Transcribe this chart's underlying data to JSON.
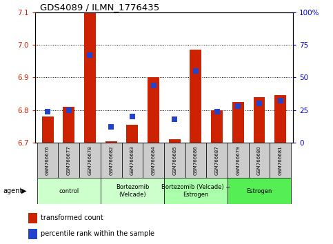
{
  "title": "GDS4089 / ILMN_1776435",
  "samples": [
    "GSM766676",
    "GSM766677",
    "GSM766678",
    "GSM766682",
    "GSM766683",
    "GSM766684",
    "GSM766685",
    "GSM766686",
    "GSM766687",
    "GSM766679",
    "GSM766680",
    "GSM766681"
  ],
  "transformed_counts": [
    6.78,
    6.81,
    7.1,
    6.705,
    6.755,
    6.9,
    6.71,
    6.985,
    6.8,
    6.825,
    6.84,
    6.845
  ],
  "percentile_ranks": [
    24,
    25,
    67,
    12,
    20,
    44,
    18,
    55,
    24,
    28,
    30,
    32
  ],
  "ylim_left": [
    6.7,
    7.1
  ],
  "ylim_right": [
    0,
    100
  ],
  "yticks_left": [
    6.7,
    6.8,
    6.9,
    7.0,
    7.1
  ],
  "yticks_right": [
    0,
    25,
    50,
    75,
    100
  ],
  "ytick_labels_right": [
    "0",
    "25",
    "50",
    "75",
    "100%"
  ],
  "groups": [
    {
      "label": "control",
      "start": 0,
      "end": 2,
      "color": "#ccffcc"
    },
    {
      "label": "Bortezomib\n(Velcade)",
      "start": 3,
      "end": 5,
      "color": "#ccffcc"
    },
    {
      "label": "Bortezomib (Velcade) +\nEstrogen",
      "start": 6,
      "end": 8,
      "color": "#aaffaa"
    },
    {
      "label": "Estrogen",
      "start": 9,
      "end": 11,
      "color": "#55ee55"
    }
  ],
  "bar_color": "#cc2200",
  "dot_color": "#2244cc",
  "base_value": 6.7,
  "bar_width": 0.55,
  "dot_size": 35,
  "tick_bg_color": "#cccccc",
  "left_axis_color": "#cc2200",
  "right_axis_color": "#0000cc",
  "legend_items": [
    {
      "color": "#cc2200",
      "label": "transformed count"
    },
    {
      "color": "#2244cc",
      "label": "percentile rank within the sample"
    }
  ]
}
